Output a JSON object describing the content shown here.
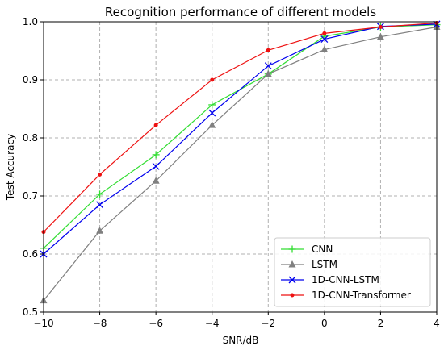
{
  "chart_data": {
    "type": "line",
    "title": "Recognition performance of different models",
    "xlabel": "SNR/dB",
    "ylabel": "Test Accuracy",
    "x": [
      -10,
      -8,
      -6,
      -4,
      -2,
      0,
      2,
      4
    ],
    "xlim": [
      -10,
      4
    ],
    "ylim": [
      0.5,
      1.0
    ],
    "xticks": [
      -10,
      -8,
      -6,
      -4,
      -2,
      0,
      2,
      4
    ],
    "yticks": [
      0.5,
      0.6,
      0.7,
      0.8,
      0.9,
      1.0
    ],
    "grid": true,
    "legend_position": "bottom-right",
    "series": [
      {
        "name": "CNN",
        "color": "#33dd33",
        "marker": "plus",
        "values": [
          0.61,
          0.703,
          0.771,
          0.857,
          0.91,
          0.975,
          0.991,
          0.995
        ]
      },
      {
        "name": "LSTM",
        "color": "#808080",
        "marker": "triangle",
        "values": [
          0.52,
          0.64,
          0.726,
          0.822,
          0.91,
          0.952,
          0.974,
          0.991
        ]
      },
      {
        "name": "1D-CNN-LSTM",
        "color": "#0000ee",
        "marker": "x",
        "values": [
          0.6,
          0.685,
          0.751,
          0.843,
          0.924,
          0.97,
          0.992,
          0.996
        ]
      },
      {
        "name": "1D-CNN-Transformer",
        "color": "#ee1111",
        "marker": "dot",
        "values": [
          0.638,
          0.737,
          0.822,
          0.9,
          0.951,
          0.98,
          0.991,
          0.998
        ]
      }
    ]
  }
}
